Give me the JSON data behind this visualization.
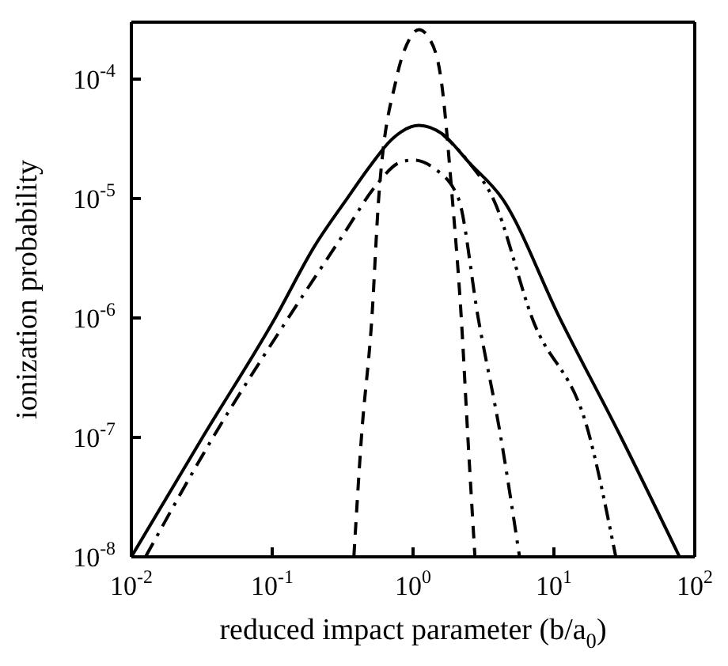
{
  "chart_data": {
    "type": "line",
    "xlabel": "reduced impact parameter (b/a$_{0}$)",
    "ylabel": "ionization probability",
    "log": "xy",
    "legend": false,
    "marker": "none",
    "xlim": [
      0.01,
      100
    ],
    "ylim": [
      1e-08,
      0.0003
    ],
    "xticks": [
      {
        "value": 0.01,
        "label": "10$^{-2}$"
      },
      {
        "value": 0.1,
        "label": "10$^{-1}$"
      },
      {
        "value": 1,
        "label": "10$^{0}$"
      },
      {
        "value": 10,
        "label": "10$^{1}$"
      },
      {
        "value": 100,
        "label": "10$^{2}$"
      }
    ],
    "yticks": [
      {
        "value": 1e-08,
        "label": "10$^{-8}$"
      },
      {
        "value": 1e-07,
        "label": "10$^{-7}$"
      },
      {
        "value": 1e-06,
        "label": "10$^{-6}$"
      },
      {
        "value": 1e-05,
        "label": "10$^{-5}$"
      },
      {
        "value": 0.0001,
        "label": "10$^{-4}$"
      }
    ],
    "series": [
      {
        "color": "#000000",
        "line_style": "solid",
        "x": [
          0.01,
          0.032,
          0.105,
          0.2,
          0.34,
          0.5,
          0.7,
          1.1,
          1.6,
          2.5,
          4.3,
          11,
          30,
          78
        ],
        "values": [
          1e-08,
          1e-07,
          1e-06,
          4e-06,
          1e-05,
          1.9e-05,
          3.1e-05,
          4.1e-05,
          3.5e-05,
          2e-05,
          1e-05,
          1e-06,
          1e-07,
          1e-08
        ]
      },
      {
        "color": "#000000",
        "line_style": "dashed",
        "x": [
          0.38,
          0.43,
          0.51,
          0.57,
          0.76,
          0.95,
          1.1,
          1.3,
          1.58,
          1.9,
          2.2,
          2.45,
          2.75
        ],
        "values": [
          1e-08,
          1e-07,
          1e-06,
          1e-05,
          0.0001,
          0.00022,
          0.00026,
          0.00022,
          0.0001,
          1e-05,
          1e-06,
          1e-07,
          1e-08
        ]
      },
      {
        "color": "#000000",
        "line_style": "dashdot",
        "x": [
          0.0126,
          0.038,
          0.13,
          0.32,
          0.55,
          0.8,
          1.0,
          1.4,
          2.1,
          2.9,
          4.2,
          5.7
        ],
        "values": [
          1e-08,
          1e-07,
          1e-06,
          5e-06,
          1.3e-05,
          2e-05,
          2.1e-05,
          1.8e-05,
          1e-05,
          1e-06,
          1e-07,
          1e-08
        ]
      },
      {
        "color": "#000000",
        "line_style": "dashdotdot",
        "x": [
          1.6,
          2.5,
          3.7,
          7,
          18,
          27.5
        ],
        "values": [
          3.5e-05,
          2e-05,
          1e-05,
          1e-06,
          1e-07,
          1e-08
        ]
      }
    ]
  }
}
